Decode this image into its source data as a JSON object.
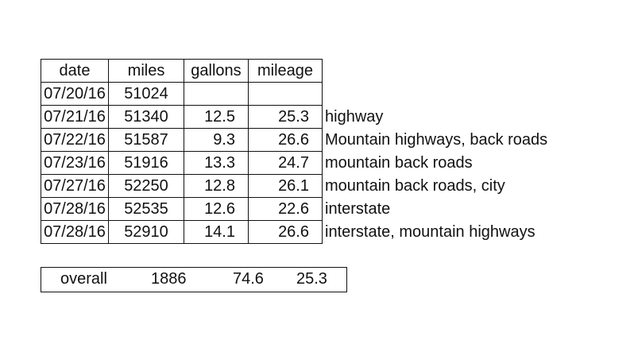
{
  "table": {
    "headers": {
      "date": "date",
      "miles": "miles",
      "gallons": "gallons",
      "mileage": "mileage"
    },
    "rows": [
      {
        "date": "07/20/16",
        "miles": "51024",
        "gallons": "",
        "mileage": "",
        "note": ""
      },
      {
        "date": "07/21/16",
        "miles": "51340",
        "gallons": "12.5",
        "mileage": "25.3",
        "note": "highway"
      },
      {
        "date": "07/22/16",
        "miles": "51587",
        "gallons": "9.3",
        "mileage": "26.6",
        "note": "Mountain highways, back roads"
      },
      {
        "date": "07/23/16",
        "miles": "51916",
        "gallons": "13.3",
        "mileage": "24.7",
        "note": "mountain back roads"
      },
      {
        "date": "07/27/16",
        "miles": "52250",
        "gallons": "12.8",
        "mileage": "26.1",
        "note": "mountain back roads, city"
      },
      {
        "date": "07/28/16",
        "miles": "52535",
        "gallons": "12.6",
        "mileage": "22.6",
        "note": "interstate"
      },
      {
        "date": "07/28/16",
        "miles": "52910",
        "gallons": "14.1",
        "mileage": "26.6",
        "note": "interstate, mountain highways"
      }
    ]
  },
  "overall": {
    "label": "overall",
    "miles": "1886",
    "gallons": "74.6",
    "mileage": "25.3"
  }
}
